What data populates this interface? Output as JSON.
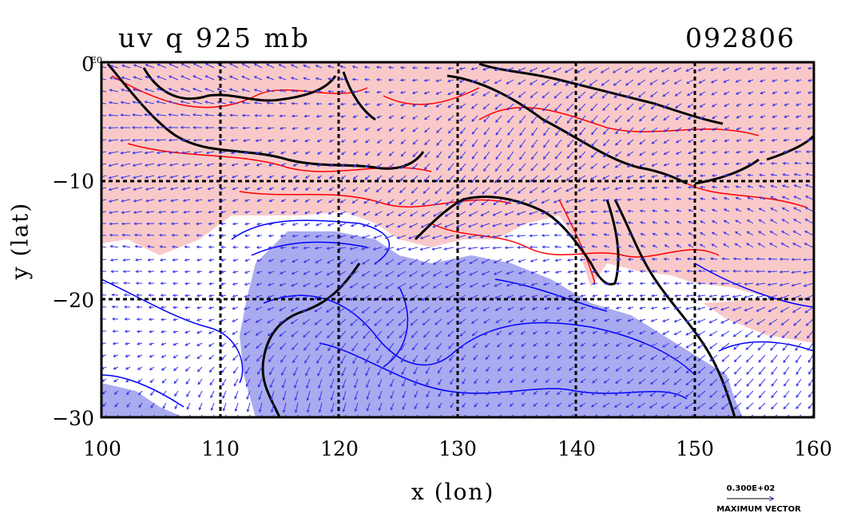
{
  "title": {
    "left": "uv  q  925  mb",
    "right": "092806"
  },
  "axes": {
    "xlabel": "x (lon)",
    "ylabel": "y (lat)",
    "x_ticks": [
      "100",
      "110",
      "120",
      "130",
      "140",
      "150",
      "160"
    ],
    "y_ticks": [
      "0",
      "−10",
      "−20",
      "−30"
    ],
    "exponent_label": "E0",
    "xlim": [
      100,
      160
    ],
    "ylim": [
      -30,
      0
    ],
    "grid": true
  },
  "vector_scale": {
    "value": "0.300E+02",
    "label": "MAXIMUM VECTOR"
  },
  "colors": {
    "positive_fill": "#f9c9c9",
    "negative_fill": "#aaaaf0",
    "positive_contour": "#ff0000",
    "negative_contour": "#0000ff",
    "coast": "#000000",
    "vectors": "#3838e8"
  }
}
